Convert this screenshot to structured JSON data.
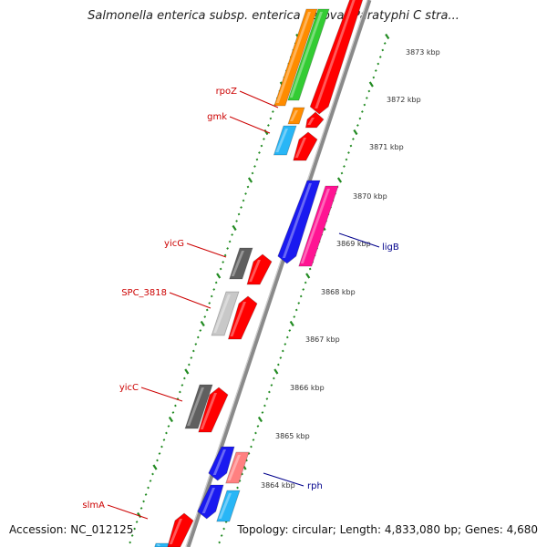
{
  "title": "Salmonella enterica subsp. enterica serovar Paratyphi C stra...",
  "footer": {
    "accession": "Accession: NC_012125",
    "topology": "Topology: circular; Length: 4,833,080 bp; Genes: 4,680"
  },
  "colors": {
    "red": "#ff0000",
    "cyan": "#29b6f6",
    "blue": "#1a1af0",
    "magenta": "#ff1493",
    "dark_gray": "#5f5f5f",
    "light_gray": "#c8c8c8",
    "pink": "#ff8080",
    "orange": "#ff8c00",
    "green": "#33cc33",
    "tick_green": "#228b22",
    "label_red": "#cc0000",
    "label_blue": "#00008b"
  },
  "ruler_labels": [
    "3873 kbp",
    "3872 kbp",
    "3871 kbp",
    "3870 kbp",
    "3869 kbp",
    "3868 kbp",
    "3867 kbp",
    "3866 kbp",
    "3865 kbp",
    "3864 kbp"
  ],
  "gene_labels": [
    "rpoZ",
    "gmk",
    "yicG",
    "SPC_3818",
    "yicC",
    "slmA",
    "ligB",
    "rph"
  ]
}
